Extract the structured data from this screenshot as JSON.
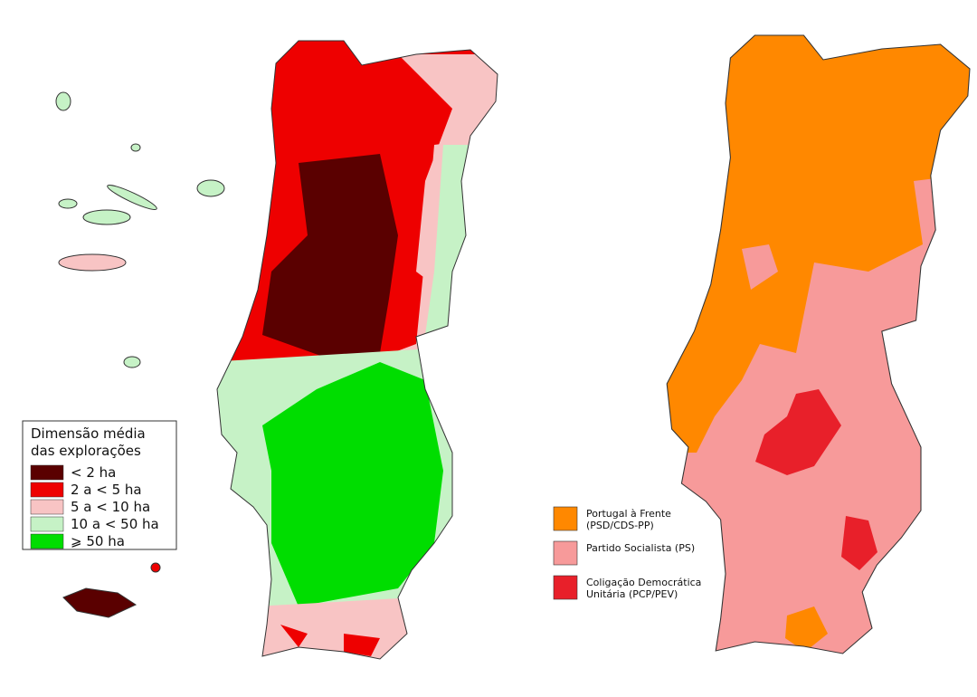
{
  "left_map": {
    "legend": {
      "title": [
        "Dimensão média",
        "das explorações"
      ],
      "items": [
        {
          "label": [
            "< 2 ha"
          ],
          "color": "#5a0000"
        },
        {
          "label": [
            "2 a < 5 ha"
          ],
          "color": "#ee0000"
        },
        {
          "label": [
            "5 a < 10 ha"
          ],
          "color": "#f8c4c4"
        },
        {
          "label": [
            "10 a < 50 ha"
          ],
          "color": "#c6f2c6"
        },
        {
          "label": [
            "⩾ 50 ha"
          ],
          "color": "#00dd00"
        }
      ]
    }
  },
  "right_map": {
    "legend": {
      "items": [
        {
          "label": [
            "Portugal à Frente",
            "(PSD/CDS-PP)"
          ],
          "color": "#ff8800"
        },
        {
          "label": [
            "Partido Socialista (PS)"
          ],
          "color": "#f79a9a"
        },
        {
          "label": [
            "Coligação Democrática",
            "Unitária (PCP/PEV)"
          ],
          "color": "#e8202a"
        }
      ]
    }
  }
}
